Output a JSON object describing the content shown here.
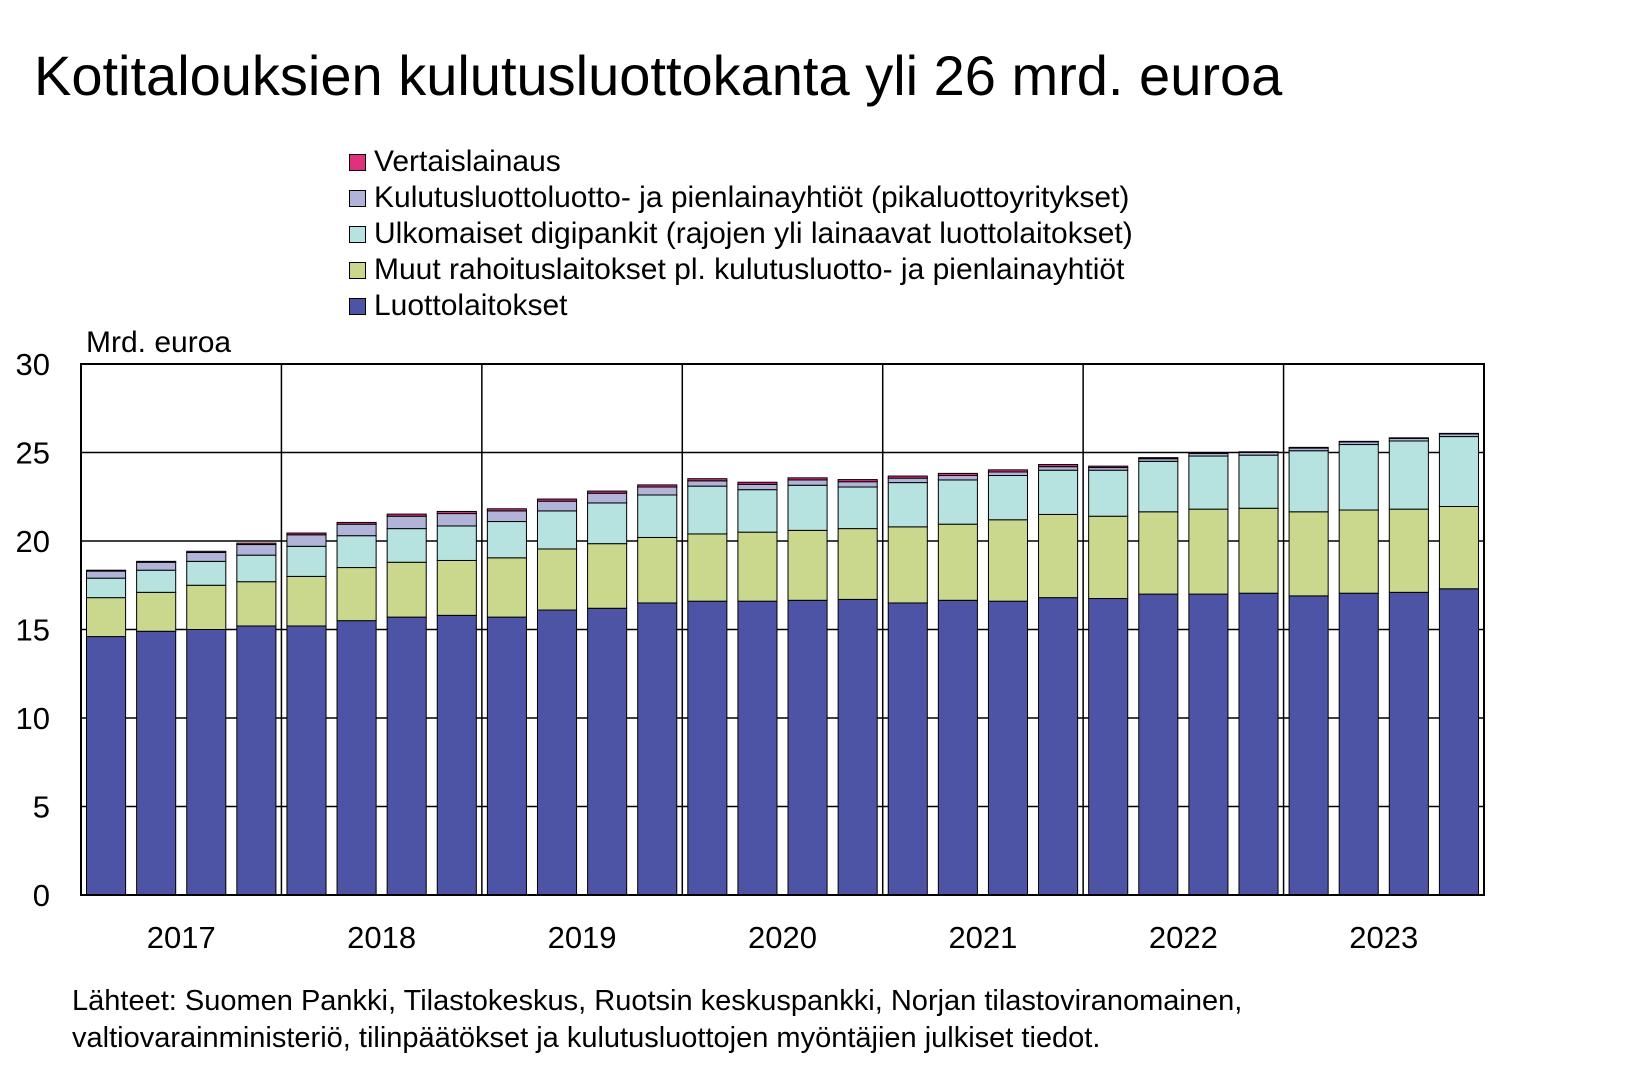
{
  "title": "Kotitalouksien kulutusluottokanta yli 26 mrd. euroa",
  "unit_label": "Mrd. euroa",
  "source": {
    "line1": "Lähteet: Suomen Pankki, Tilastokeskus, Ruotsin keskuspankki, Norjan tilastoviranomainen,",
    "line2": "valtiovarainministeriö,  tilinpäätökset ja kulutusluottojen myöntäjien julkiset tiedot."
  },
  "legend": [
    {
      "label": "Vertaislainaus",
      "color": "#e0317e"
    },
    {
      "label": "Kulutusluottoluotto- ja pienlainayhtiöt (pikaluottoyritykset)",
      "color": "#b1b4d8"
    },
    {
      "label": "Ulkomaiset digipankit (rajojen yli lainaavat luottolaitokset)",
      "color": "#b6e2e0"
    },
    {
      "label": "Muut rahoituslaitokset pl. kulutusluotto- ja pienlainayhtiöt",
      "color": "#cad88e"
    },
    {
      "label": "Luottolaitokset",
      "color": "#4d53a5"
    }
  ],
  "chart_data": {
    "type": "bar",
    "stacked": true,
    "frequency": "quarterly",
    "year_labels": [
      "2017",
      "2018",
      "2019",
      "2020",
      "2021",
      "2022",
      "2023"
    ],
    "categories": [
      "2017Q1",
      "2017Q2",
      "2017Q3",
      "2017Q4",
      "2018Q1",
      "2018Q2",
      "2018Q3",
      "2018Q4",
      "2019Q1",
      "2019Q2",
      "2019Q3",
      "2019Q4",
      "2020Q1",
      "2020Q2",
      "2020Q3",
      "2020Q4",
      "2021Q1",
      "2021Q2",
      "2021Q3",
      "2021Q4",
      "2022Q1",
      "2022Q2",
      "2022Q3",
      "2022Q4",
      "2023Q1",
      "2023Q2",
      "2023Q3",
      "2023Q4"
    ],
    "ylim": [
      0,
      30
    ],
    "yticks": [
      0,
      5,
      10,
      15,
      20,
      25,
      30
    ],
    "grid": true,
    "series": [
      {
        "name": "Luottolaitokset",
        "color": "#4d53a5",
        "values": [
          14.6,
          14.9,
          15.0,
          15.2,
          15.2,
          15.5,
          15.7,
          15.8,
          15.7,
          16.1,
          16.2,
          16.5,
          16.6,
          16.6,
          16.65,
          16.7,
          16.5,
          16.65,
          16.6,
          16.8,
          16.75,
          17.0,
          17.0,
          17.05,
          16.9,
          17.05,
          17.1,
          17.3
        ]
      },
      {
        "name": "Muut rahoituslaitokset pl. kulutusluotto- ja pienlainayhtiöt",
        "color": "#cad88e",
        "values": [
          2.2,
          2.2,
          2.5,
          2.5,
          2.8,
          3.0,
          3.1,
          3.1,
          3.35,
          3.45,
          3.65,
          3.7,
          3.8,
          3.9,
          3.95,
          4.0,
          4.3,
          4.3,
          4.6,
          4.7,
          4.65,
          4.65,
          4.8,
          4.8,
          4.75,
          4.7,
          4.7,
          4.65
        ]
      },
      {
        "name": "Ulkomaiset digipankit (rajojen yli lainaavat luottolaitokset)",
        "color": "#b6e2e0",
        "values": [
          1.1,
          1.25,
          1.35,
          1.5,
          1.7,
          1.8,
          1.9,
          1.95,
          2.05,
          2.15,
          2.3,
          2.4,
          2.7,
          2.4,
          2.55,
          2.35,
          2.5,
          2.5,
          2.5,
          2.5,
          2.6,
          2.85,
          3.0,
          3.0,
          3.45,
          3.7,
          3.85,
          3.95
        ]
      },
      {
        "name": "Kulutusluottoluotto- ja pienlainayhtiöt (pikaluottoyritykset)",
        "color": "#b1b4d8",
        "values": [
          0.4,
          0.45,
          0.5,
          0.6,
          0.65,
          0.65,
          0.7,
          0.7,
          0.6,
          0.55,
          0.55,
          0.45,
          0.3,
          0.3,
          0.3,
          0.3,
          0.25,
          0.25,
          0.2,
          0.2,
          0.15,
          0.15,
          0.15,
          0.15,
          0.15,
          0.15,
          0.15,
          0.15
        ]
      },
      {
        "name": "Vertaislainaus",
        "color": "#e0317e",
        "values": [
          0.05,
          0.05,
          0.07,
          0.08,
          0.1,
          0.1,
          0.12,
          0.12,
          0.12,
          0.12,
          0.12,
          0.12,
          0.12,
          0.12,
          0.12,
          0.12,
          0.12,
          0.12,
          0.12,
          0.12,
          0.08,
          0.06,
          0.05,
          0.04,
          0.04,
          0.03,
          0.03,
          0.03
        ]
      }
    ]
  }
}
